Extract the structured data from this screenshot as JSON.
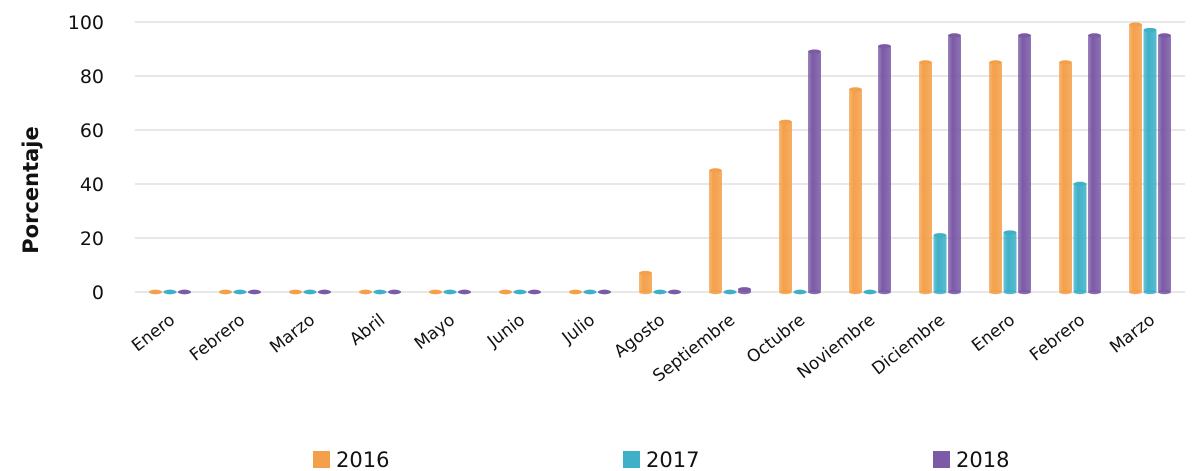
{
  "chart_data": {
    "type": "bar",
    "title": "",
    "xlabel": "",
    "ylabel": "Porcentaje",
    "ylim": [
      0,
      100
    ],
    "yticks": [
      0,
      20,
      40,
      60,
      80,
      100
    ],
    "grid": true,
    "legend_position": "bottom",
    "categories": [
      "Enero",
      "Febrero",
      "Marzo",
      "Abril",
      "Mayo",
      "Junio",
      "Julio",
      "Agosto",
      "Septiembre",
      "Octubre",
      "Noviembre",
      "Diciembre",
      "Enero",
      "Febrero",
      "Marzo"
    ],
    "series": [
      {
        "name": "2016",
        "color": "#f4a04a",
        "values": [
          0,
          0,
          0,
          0,
          0,
          0,
          0,
          7,
          45,
          63,
          75,
          85,
          85,
          85,
          99
        ]
      },
      {
        "name": "2017",
        "color": "#3fb0c8",
        "values": [
          0,
          0,
          0,
          0,
          0,
          0,
          0,
          0,
          0,
          0,
          0,
          21,
          22,
          40,
          97
        ]
      },
      {
        "name": "2018",
        "color": "#7b5aa6",
        "values": [
          0,
          0,
          0,
          0,
          0,
          0,
          0,
          0,
          1,
          89,
          91,
          95,
          95,
          95,
          95
        ]
      }
    ]
  }
}
